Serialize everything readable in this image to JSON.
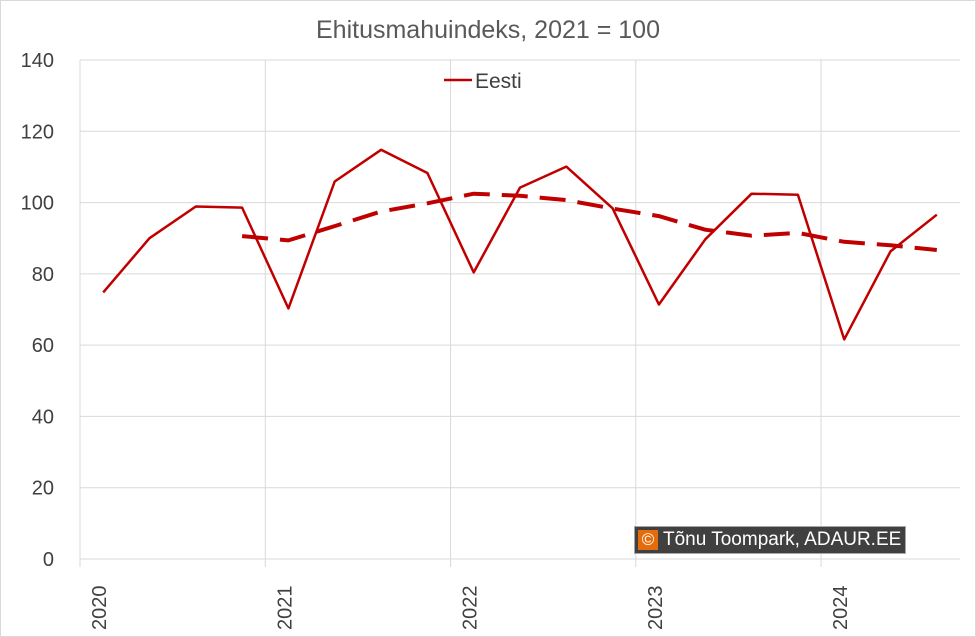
{
  "chart_data": {
    "type": "line",
    "title": "Ehitusmahuindeks, 2021 = 100",
    "xlabel": "",
    "ylabel": "",
    "ylim": [
      0,
      140
    ],
    "yticks": [
      0,
      20,
      40,
      60,
      80,
      100,
      120,
      140
    ],
    "x_year_labels": [
      "2020",
      "2021",
      "2022",
      "2023",
      "2024"
    ],
    "x_quarters": [
      "2020 Q1",
      "2020 Q2",
      "2020 Q3",
      "2020 Q4",
      "2021 Q1",
      "2021 Q2",
      "2021 Q3",
      "2021 Q4",
      "2022 Q1",
      "2022 Q2",
      "2022 Q3",
      "2022 Q4",
      "2023 Q1",
      "2023 Q2",
      "2023 Q3",
      "2023 Q4",
      "2024 Q1",
      "2024 Q2",
      "2024 Q3"
    ],
    "grid": true,
    "legend_position": "top-center",
    "series": [
      {
        "name": "Eesti",
        "color": "#c00000",
        "style": "solid",
        "values": [
          74.8,
          90.0,
          98.9,
          98.6,
          70.3,
          105.9,
          114.8,
          108.3,
          80.4,
          104.2,
          110.1,
          98.4,
          71.4,
          89.7,
          102.5,
          102.2,
          61.6,
          86.3,
          96.6
        ]
      },
      {
        "color": "#c00000",
        "style": "dashed",
        "values": [
          null,
          null,
          null,
          90.6,
          89.4,
          93.4,
          97.5,
          99.8,
          102.5,
          101.9,
          100.7,
          98.3,
          96.2,
          92.4,
          90.7,
          91.5,
          89.0,
          88.0,
          86.7
        ]
      }
    ]
  },
  "watermark": {
    "symbol": "©",
    "text": "Tõnu Toompark, ADAUR.EE"
  }
}
